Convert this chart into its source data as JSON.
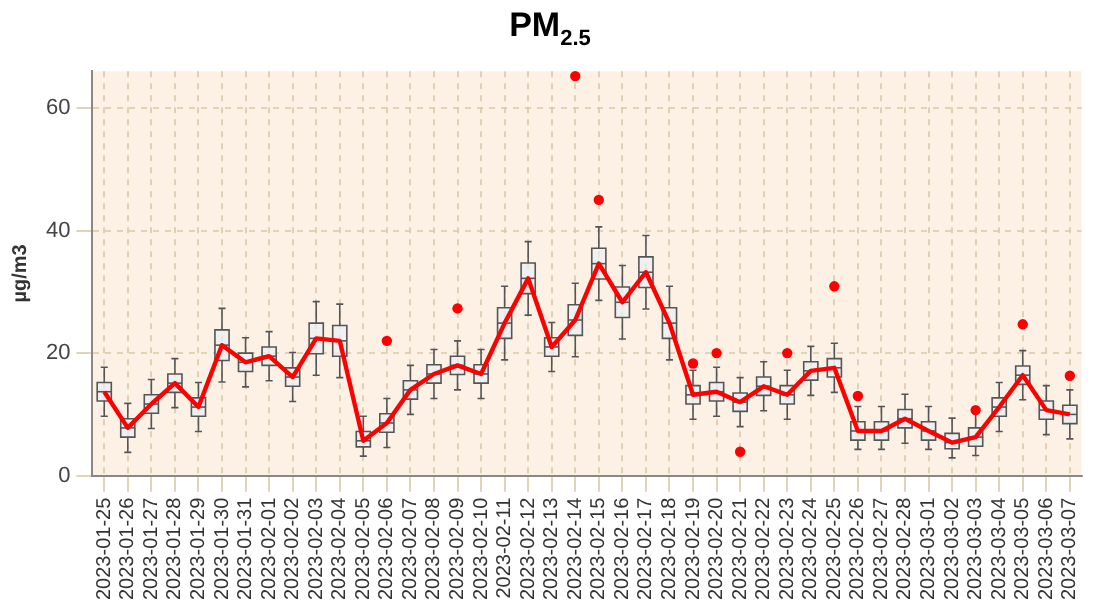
{
  "chart_data": {
    "type": "box",
    "title": "PM$_{2.5}$",
    "ylabel": "µg/m3",
    "categories": [
      "2023-01-25",
      "2023-01-26",
      "2023-01-27",
      "2023-01-28",
      "2023-01-29",
      "2023-01-30",
      "2023-01-31",
      "2023-02-01",
      "2023-02-02",
      "2023-02-03",
      "2023-02-04",
      "2023-02-05",
      "2023-02-06",
      "2023-02-07",
      "2023-02-08",
      "2023-02-09",
      "2023-02-10",
      "2023-02-11",
      "2023-02-12",
      "2023-02-13",
      "2023-02-14",
      "2023-02-15",
      "2023-02-16",
      "2023-02-17",
      "2023-02-18",
      "2023-02-19",
      "2023-02-20",
      "2023-02-21",
      "2023-02-22",
      "2023-02-23",
      "2023-02-24",
      "2023-02-25",
      "2023-02-26",
      "2023-02-27",
      "2023-02-28",
      "2023-03-01",
      "2023-03-02",
      "2023-03-03",
      "2023-03-04",
      "2023-03-05",
      "2023-03-06",
      "2023-03-07"
    ],
    "boxes": [
      {
        "low": 9.7,
        "q1": 12.2,
        "median": 13.7,
        "q3": 15.2,
        "high": 17.7
      },
      {
        "low": 3.8,
        "q1": 6.3,
        "median": 7.8,
        "q3": 9.3,
        "high": 11.8
      },
      {
        "low": 7.7,
        "q1": 10.2,
        "median": 11.7,
        "q3": 13.2,
        "high": 15.7
      },
      {
        "low": 11.1,
        "q1": 13.6,
        "median": 15.1,
        "q3": 16.6,
        "high": 19.1
      },
      {
        "low": 7.2,
        "q1": 9.7,
        "median": 11.2,
        "q3": 12.7,
        "high": 15.2
      },
      {
        "low": 15.3,
        "q1": 18.8,
        "median": 21.3,
        "q3": 23.8,
        "high": 27.3
      },
      {
        "low": 14.5,
        "q1": 17,
        "median": 18.5,
        "q3": 20,
        "high": 22.5
      },
      {
        "low": 15.5,
        "q1": 18,
        "median": 19.5,
        "q3": 21,
        "high": 23.5
      },
      {
        "low": 12.1,
        "q1": 14.6,
        "median": 16.1,
        "q3": 17.6,
        "high": 20.1
      },
      {
        "low": 16.4,
        "q1": 19.9,
        "median": 22.4,
        "q3": 24.9,
        "high": 28.4
      },
      {
        "low": 16,
        "q1": 19.5,
        "median": 22,
        "q3": 24.5,
        "high": 28
      },
      {
        "low": 3.2,
        "q1": 4.7,
        "median": 5.7,
        "q3": 7.2,
        "high": 9.7
      },
      {
        "low": 4.6,
        "q1": 7.1,
        "median": 8.6,
        "q3": 10.1,
        "high": 12.6,
        "outliers": [
          22
        ]
      },
      {
        "low": 10,
        "q1": 12.5,
        "median": 14,
        "q3": 15.5,
        "high": 18
      },
      {
        "low": 12.6,
        "q1": 15.1,
        "median": 16.6,
        "q3": 18.1,
        "high": 20.6
      },
      {
        "low": 14,
        "q1": 16.5,
        "median": 18,
        "q3": 19.5,
        "high": 22,
        "outliers": [
          27.3
        ]
      },
      {
        "low": 12.6,
        "q1": 15.1,
        "median": 16.6,
        "q3": 18.1,
        "high": 20.6
      },
      {
        "low": 18.9,
        "q1": 22.4,
        "median": 24.9,
        "q3": 27.4,
        "high": 30.9
      },
      {
        "low": 26.2,
        "q1": 29.7,
        "median": 32.2,
        "q3": 34.7,
        "high": 38.2
      },
      {
        "low": 17,
        "q1": 19.5,
        "median": 21,
        "q3": 22.5,
        "high": 25
      },
      {
        "low": 19.4,
        "q1": 22.9,
        "median": 25.4,
        "q3": 27.9,
        "high": 31.4,
        "outliers": [
          65.2
        ]
      },
      {
        "low": 28.6,
        "q1": 32.1,
        "median": 34.6,
        "q3": 37.1,
        "high": 40.6,
        "outliers": [
          45
        ]
      },
      {
        "low": 22.3,
        "q1": 25.8,
        "median": 28.3,
        "q3": 30.8,
        "high": 34.3
      },
      {
        "low": 27.2,
        "q1": 30.7,
        "median": 33.2,
        "q3": 35.7,
        "high": 39.2
      },
      {
        "low": 18.9,
        "q1": 22.4,
        "median": 24.9,
        "q3": 27.4,
        "high": 30.9
      },
      {
        "low": 9.2,
        "q1": 11.7,
        "median": 13.2,
        "q3": 14.7,
        "high": 17.2,
        "outliers": [
          18.3
        ]
      },
      {
        "low": 9.7,
        "q1": 12.2,
        "median": 13.7,
        "q3": 15.2,
        "high": 17.7,
        "outliers": [
          20
        ]
      },
      {
        "low": 8,
        "q1": 10.5,
        "median": 12,
        "q3": 13.5,
        "high": 16,
        "outliers": [
          3.9
        ]
      },
      {
        "low": 10.6,
        "q1": 13.1,
        "median": 14.6,
        "q3": 16.1,
        "high": 18.6
      },
      {
        "low": 9.2,
        "q1": 11.7,
        "median": 13.2,
        "q3": 14.7,
        "high": 17.2,
        "outliers": [
          20
        ]
      },
      {
        "low": 13.1,
        "q1": 15.6,
        "median": 17.1,
        "q3": 18.6,
        "high": 21.1
      },
      {
        "low": 13.6,
        "q1": 16.1,
        "median": 17.6,
        "q3": 19.1,
        "high": 21.6,
        "outliers": [
          30.9
        ]
      },
      {
        "low": 4.3,
        "q1": 5.8,
        "median": 7.3,
        "q3": 8.8,
        "high": 11.3,
        "outliers": [
          13
        ]
      },
      {
        "low": 4.3,
        "q1": 5.8,
        "median": 7.3,
        "q3": 8.8,
        "high": 11.3
      },
      {
        "low": 5.3,
        "q1": 7.8,
        "median": 9.3,
        "q3": 10.8,
        "high": 13.3
      },
      {
        "low": 4.3,
        "q1": 5.8,
        "median": 7.3,
        "q3": 8.8,
        "high": 11.3
      },
      {
        "low": 2.9,
        "q1": 4.4,
        "median": 5.4,
        "q3": 6.9,
        "high": 9.4
      },
      {
        "low": 3.3,
        "q1": 4.8,
        "median": 6.3,
        "q3": 7.8,
        "high": 10.3,
        "outliers": [
          10.7
        ]
      },
      {
        "low": 7.2,
        "q1": 9.7,
        "median": 11.2,
        "q3": 12.7,
        "high": 15.2
      },
      {
        "low": 12.4,
        "q1": 14.9,
        "median": 16.4,
        "q3": 17.9,
        "high": 20.4,
        "outliers": [
          24.7
        ]
      },
      {
        "low": 6.7,
        "q1": 9.2,
        "median": 10.7,
        "q3": 12.2,
        "high": 14.7
      },
      {
        "low": 6,
        "q1": 8.5,
        "median": 10,
        "q3": 11.5,
        "high": 14,
        "outliers": [
          16.3
        ]
      }
    ],
    "series": [
      {
        "type": "line",
        "color": "#ff0000",
        "values": [
          13.7,
          7.8,
          11.7,
          15.1,
          11.2,
          21.3,
          18.5,
          19.5,
          16.1,
          22.4,
          22,
          5.7,
          8.6,
          14,
          16.6,
          18,
          16.6,
          24.9,
          32.2,
          21,
          25.4,
          34.6,
          28.3,
          33.2,
          24.9,
          13.2,
          13.7,
          12,
          14.6,
          13.2,
          17.1,
          17.6,
          7.3,
          7.3,
          9.3,
          7.3,
          5.4,
          6.3,
          11.2,
          16.4,
          10.7,
          10
        ]
      }
    ],
    "ylim": [
      0,
      66
    ],
    "yticks": [
      0,
      20,
      40,
      60
    ],
    "grid": true,
    "legend": false,
    "marker": "none",
    "line_style": "solid"
  }
}
